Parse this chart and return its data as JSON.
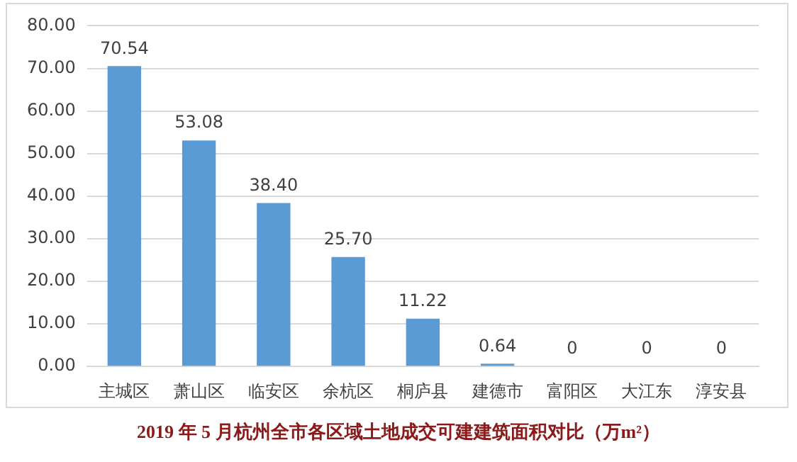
{
  "chart_data": {
    "type": "bar",
    "title": "2019 年 5 月杭州全市各区域土地成交可建建筑面积对比（万m²）",
    "categories": [
      "主城区",
      "萧山区",
      "临安区",
      "余杭区",
      "桐庐县",
      "建德市",
      "富阳区",
      "大江东",
      "淳安县"
    ],
    "values": [
      70.54,
      53.08,
      38.4,
      25.7,
      11.22,
      0.64,
      0,
      0,
      0
    ],
    "value_labels": [
      "70.54",
      "53.08",
      "38.40",
      "25.70",
      "11.22",
      "0.64",
      "0",
      "0",
      "0"
    ],
    "color": "#5b9bd5",
    "ylim": [
      0,
      80
    ],
    "yticks": [
      {
        "value": 0,
        "label": "0.00"
      },
      {
        "value": 10,
        "label": "10.00"
      },
      {
        "value": 20,
        "label": "20.00"
      },
      {
        "value": 30,
        "label": "30.00"
      },
      {
        "value": 40,
        "label": "40.00"
      },
      {
        "value": 50,
        "label": "50.00"
      },
      {
        "value": 60,
        "label": "60.00"
      },
      {
        "value": 70,
        "label": "70.00"
      },
      {
        "value": 80,
        "label": "80.00"
      }
    ],
    "grid": "y",
    "legend": false
  }
}
